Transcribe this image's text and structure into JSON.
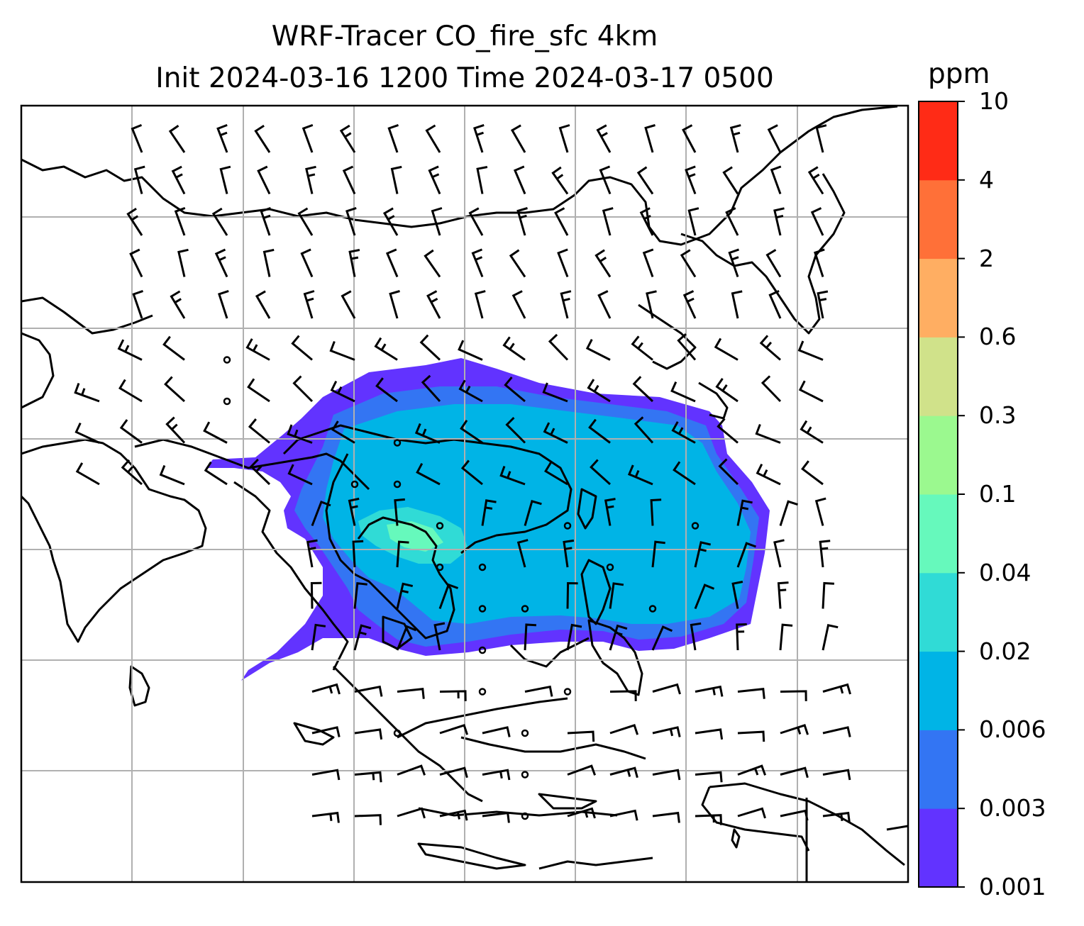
{
  "title": {
    "line1": "WRF-Tracer CO_fire_sfc 4km",
    "line2": "Init 2024-03-16 1200 Time 2024-03-17 0500"
  },
  "colorbar": {
    "unit_label": "ppm",
    "levels": [
      {
        "label": "0.001",
        "color": "#6233ff"
      },
      {
        "label": "0.003",
        "color": "#3375f3"
      },
      {
        "label": "0.006",
        "color": "#00b4e6"
      },
      {
        "label": "0.02",
        "color": "#30dbd6"
      },
      {
        "label": "0.04",
        "color": "#66f9bc"
      },
      {
        "label": "0.1",
        "color": "#9bf98f"
      },
      {
        "label": "0.3",
        "color": "#d0e28a"
      },
      {
        "label": "0.6",
        "color": "#ffae62"
      },
      {
        "label": "2",
        "color": "#ff7038"
      },
      {
        "label": "4",
        "color": "#ff2b16"
      },
      {
        "label": "10",
        "color": null
      }
    ]
  },
  "map": {
    "field": "CO_fire_sfc",
    "units": "ppm",
    "gridlines": true,
    "wind_barbs": true
  }
}
